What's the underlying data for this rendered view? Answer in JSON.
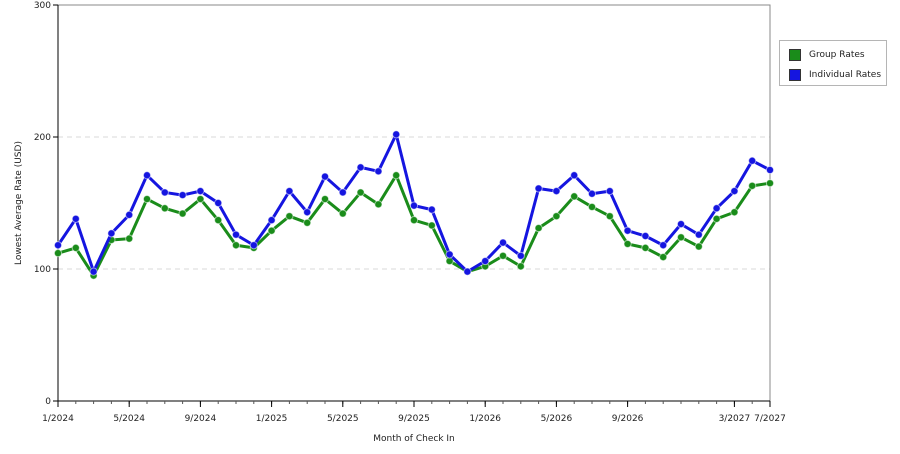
{
  "chart_data": {
    "type": "line",
    "xlabel": "Month of Check In",
    "ylabel": "Lowest Average Rate (USD)",
    "ylim": [
      0,
      300
    ],
    "yticks": [
      "0",
      "100",
      "200",
      "300"
    ],
    "xticks": [
      "1/2024",
      "5/2024",
      "9/2024",
      "1/2025",
      "5/2025",
      "9/2025",
      "1/2026",
      "5/2026",
      "9/2026",
      "3/2027",
      "7/2027"
    ],
    "legend_position": "right",
    "grid": "horizontal dashed",
    "series": [
      {
        "name": "Group Rates",
        "color": "#1a8c1a",
        "values": [
          112,
          116,
          95,
          122,
          123,
          153,
          146,
          142,
          153,
          137,
          118,
          116,
          129,
          140,
          135,
          153,
          142,
          158,
          149,
          171,
          137,
          133,
          106,
          98,
          102,
          110,
          102,
          131,
          140,
          155,
          147,
          140,
          119,
          116,
          109,
          124,
          117,
          138,
          143,
          163,
          165
        ]
      },
      {
        "name": "Individual Rates",
        "color": "#1515e0",
        "values": [
          118,
          138,
          98,
          127,
          141,
          171,
          158,
          156,
          159,
          150,
          126,
          118,
          137,
          159,
          143,
          170,
          158,
          177,
          174,
          202,
          148,
          145,
          111,
          98,
          106,
          120,
          110,
          161,
          159,
          171,
          157,
          159,
          129,
          125,
          118,
          134,
          126,
          146,
          159,
          182,
          175
        ]
      }
    ]
  }
}
